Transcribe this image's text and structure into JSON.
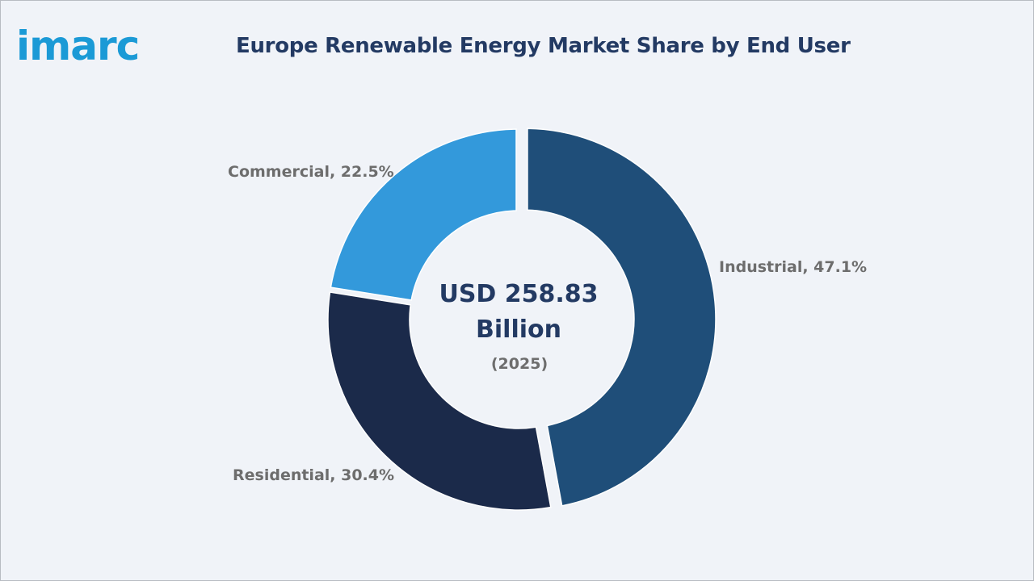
{
  "brand": {
    "logo_text": "imarc"
  },
  "header": {
    "title": "Europe Renewable Energy Market Share by End User"
  },
  "colors": {
    "accent": "#1b9ad6",
    "title": "#233a63",
    "label": "#6d6d6d",
    "background": "#f0f3f8"
  },
  "chart_data": {
    "type": "pie",
    "title": "Europe Renewable Energy Market Share by End User",
    "donut": true,
    "center_text": {
      "value_line1": "USD 258.83",
      "value_line2": "Billion",
      "year": "(2025)"
    },
    "slices": [
      {
        "label": "Industrial",
        "value": 47.1,
        "display": "Industrial, 47.1%",
        "color": "#1f4e79",
        "exploded": true
      },
      {
        "label": "Residential",
        "value": 30.4,
        "display": "Residential, 30.4%",
        "color": "#1b2a4a",
        "exploded": false
      },
      {
        "label": "Commercial",
        "value": 22.5,
        "display": "Commercial, 22.5%",
        "color": "#3399db",
        "exploded": false
      }
    ],
    "unit": "%"
  }
}
